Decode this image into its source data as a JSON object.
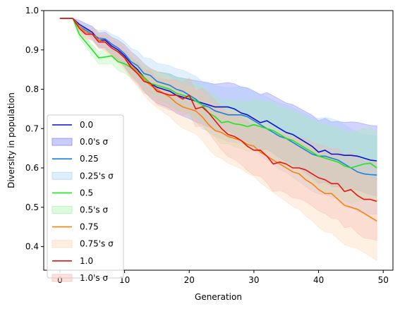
{
  "chart_data": {
    "type": "line",
    "title": "",
    "xlabel": "Generation",
    "ylabel": "Diversity in population",
    "xlim": [
      -2.5,
      51.5
    ],
    "ylim": [
      0.34,
      1.0
    ],
    "xticks": [
      0,
      10,
      20,
      30,
      40,
      50
    ],
    "yticks": [
      0.4,
      0.5,
      0.6,
      0.7,
      0.8,
      0.9,
      1.0
    ],
    "xtick_labels": [
      "0",
      "10",
      "20",
      "30",
      "40",
      "50"
    ],
    "ytick_labels": [
      "0.4",
      "0.5",
      "0.6",
      "0.7",
      "0.8",
      "0.9",
      "1.0"
    ],
    "grid": false,
    "legend": "lower-left",
    "x": [
      0,
      1,
      2,
      3,
      4,
      5,
      6,
      7,
      8,
      9,
      10,
      11,
      12,
      13,
      14,
      15,
      16,
      17,
      18,
      19,
      20,
      21,
      22,
      23,
      24,
      25,
      26,
      27,
      28,
      29,
      30,
      31,
      32,
      33,
      34,
      35,
      36,
      37,
      38,
      39,
      40,
      41,
      42,
      43,
      44,
      45,
      46,
      47,
      48,
      49
    ],
    "series": [
      {
        "name": "0.0",
        "band_name": "0.0's σ",
        "color": "#0a0fd6",
        "band_color": "#6a6dfc",
        "values": [
          0.98,
          0.98,
          0.98,
          0.965,
          0.955,
          0.945,
          0.925,
          0.925,
          0.91,
          0.9,
          0.885,
          0.865,
          0.85,
          0.83,
          0.815,
          0.805,
          0.8,
          0.795,
          0.785,
          0.78,
          0.775,
          0.77,
          0.765,
          0.76,
          0.755,
          0.755,
          0.755,
          0.75,
          0.74,
          0.735,
          0.725,
          0.715,
          0.72,
          0.71,
          0.7,
          0.69,
          0.685,
          0.675,
          0.665,
          0.655,
          0.64,
          0.645,
          0.635,
          0.635,
          0.632,
          0.632,
          0.63,
          0.625,
          0.62,
          0.618
        ],
        "sigma": [
          0,
          0,
          0,
          0.01,
          0.012,
          0.015,
          0.018,
          0.02,
          0.022,
          0.025,
          0.028,
          0.03,
          0.032,
          0.035,
          0.037,
          0.04,
          0.042,
          0.044,
          0.046,
          0.048,
          0.05,
          0.052,
          0.054,
          0.056,
          0.058,
          0.06,
          0.062,
          0.064,
          0.066,
          0.068,
          0.07,
          0.071,
          0.072,
          0.073,
          0.074,
          0.075,
          0.076,
          0.077,
          0.078,
          0.079,
          0.08,
          0.081,
          0.082,
          0.083,
          0.084,
          0.085,
          0.086,
          0.087,
          0.088,
          0.089
        ]
      },
      {
        "name": "0.25",
        "band_name": "0.25's σ",
        "color": "#1a80e0",
        "band_color": "#9fcdf5",
        "values": [
          0.98,
          0.98,
          0.98,
          0.96,
          0.95,
          0.94,
          0.93,
          0.928,
          0.915,
          0.905,
          0.89,
          0.87,
          0.86,
          0.84,
          0.835,
          0.82,
          0.815,
          0.81,
          0.8,
          0.795,
          0.785,
          0.775,
          0.76,
          0.755,
          0.745,
          0.74,
          0.735,
          0.735,
          0.735,
          0.73,
          0.72,
          0.71,
          0.7,
          0.69,
          0.68,
          0.675,
          0.665,
          0.655,
          0.645,
          0.635,
          0.63,
          0.63,
          0.625,
          0.62,
          0.61,
          0.6,
          0.59,
          0.585,
          0.583,
          0.582
        ],
        "sigma": [
          0,
          0,
          0,
          0.01,
          0.013,
          0.016,
          0.019,
          0.022,
          0.025,
          0.028,
          0.031,
          0.034,
          0.037,
          0.04,
          0.043,
          0.046,
          0.048,
          0.05,
          0.052,
          0.054,
          0.056,
          0.058,
          0.06,
          0.062,
          0.064,
          0.066,
          0.068,
          0.07,
          0.072,
          0.074,
          0.076,
          0.078,
          0.08,
          0.082,
          0.084,
          0.086,
          0.088,
          0.09,
          0.092,
          0.094,
          0.096,
          0.098,
          0.1,
          0.1,
          0.1,
          0.1,
          0.1,
          0.1,
          0.1,
          0.1
        ]
      },
      {
        "name": "0.5",
        "band_name": "0.5's σ",
        "color": "#1ee61e",
        "band_color": "#9ff59f",
        "values": [
          0.98,
          0.98,
          0.98,
          0.94,
          0.92,
          0.9,
          0.88,
          0.882,
          0.885,
          0.87,
          0.865,
          0.855,
          0.845,
          0.83,
          0.815,
          0.81,
          0.805,
          0.8,
          0.79,
          0.785,
          0.78,
          0.77,
          0.76,
          0.74,
          0.73,
          0.715,
          0.718,
          0.712,
          0.71,
          0.705,
          0.71,
          0.705,
          0.7,
          0.695,
          0.685,
          0.675,
          0.67,
          0.66,
          0.65,
          0.64,
          0.63,
          0.625,
          0.62,
          0.615,
          0.605,
          0.6,
          0.605,
          0.61,
          0.612,
          0.6
        ],
        "sigma": [
          0,
          0,
          0,
          0.01,
          0.012,
          0.014,
          0.016,
          0.018,
          0.02,
          0.022,
          0.024,
          0.026,
          0.028,
          0.03,
          0.032,
          0.034,
          0.036,
          0.038,
          0.04,
          0.042,
          0.044,
          0.046,
          0.048,
          0.05,
          0.052,
          0.054,
          0.056,
          0.058,
          0.06,
          0.062,
          0.064,
          0.066,
          0.068,
          0.07,
          0.072,
          0.074,
          0.076,
          0.078,
          0.08,
          0.082,
          0.084,
          0.085,
          0.086,
          0.087,
          0.088,
          0.089,
          0.09,
          0.09,
          0.09,
          0.09
        ]
      },
      {
        "name": "0.75",
        "band_name": "0.75's σ",
        "color": "#f5820f",
        "band_color": "#fbd2a5",
        "values": [
          0.98,
          0.98,
          0.98,
          0.96,
          0.945,
          0.94,
          0.925,
          0.92,
          0.905,
          0.895,
          0.88,
          0.86,
          0.845,
          0.825,
          0.81,
          0.8,
          0.79,
          0.78,
          0.765,
          0.755,
          0.75,
          0.745,
          0.73,
          0.71,
          0.695,
          0.69,
          0.68,
          0.675,
          0.67,
          0.66,
          0.655,
          0.64,
          0.63,
          0.62,
          0.61,
          0.6,
          0.59,
          0.585,
          0.57,
          0.56,
          0.545,
          0.535,
          0.535,
          0.52,
          0.505,
          0.5,
          0.495,
          0.485,
          0.475,
          0.465
        ],
        "sigma": [
          0,
          0,
          0,
          0.01,
          0.013,
          0.016,
          0.019,
          0.022,
          0.025,
          0.028,
          0.031,
          0.034,
          0.037,
          0.04,
          0.043,
          0.046,
          0.048,
          0.05,
          0.052,
          0.054,
          0.056,
          0.058,
          0.06,
          0.062,
          0.064,
          0.066,
          0.068,
          0.07,
          0.072,
          0.074,
          0.076,
          0.078,
          0.08,
          0.082,
          0.084,
          0.086,
          0.088,
          0.09,
          0.092,
          0.094,
          0.096,
          0.098,
          0.1,
          0.1,
          0.1,
          0.1,
          0.1,
          0.1,
          0.1,
          0.1
        ]
      },
      {
        "name": "1.0",
        "band_name": "1.0's σ",
        "color": "#e8120f",
        "band_color": "#f8b0a6",
        "values": [
          0.98,
          0.98,
          0.98,
          0.955,
          0.94,
          0.94,
          0.92,
          0.92,
          0.905,
          0.895,
          0.88,
          0.855,
          0.84,
          0.82,
          0.815,
          0.795,
          0.79,
          0.785,
          0.785,
          0.775,
          0.785,
          0.75,
          0.755,
          0.74,
          0.72,
          0.7,
          0.685,
          0.68,
          0.67,
          0.655,
          0.645,
          0.645,
          0.63,
          0.61,
          0.615,
          0.61,
          0.6,
          0.6,
          0.595,
          0.585,
          0.575,
          0.57,
          0.56,
          0.56,
          0.54,
          0.545,
          0.53,
          0.52,
          0.52,
          0.515
        ],
        "sigma": [
          0,
          0,
          0,
          0.01,
          0.012,
          0.014,
          0.016,
          0.018,
          0.02,
          0.022,
          0.024,
          0.026,
          0.028,
          0.03,
          0.032,
          0.034,
          0.036,
          0.038,
          0.04,
          0.042,
          0.044,
          0.046,
          0.048,
          0.05,
          0.052,
          0.054,
          0.056,
          0.058,
          0.06,
          0.062,
          0.064,
          0.066,
          0.068,
          0.07,
          0.072,
          0.074,
          0.076,
          0.078,
          0.08,
          0.082,
          0.084,
          0.086,
          0.088,
          0.09,
          0.092,
          0.094,
          0.096,
          0.098,
          0.1,
          0.1
        ]
      }
    ]
  }
}
